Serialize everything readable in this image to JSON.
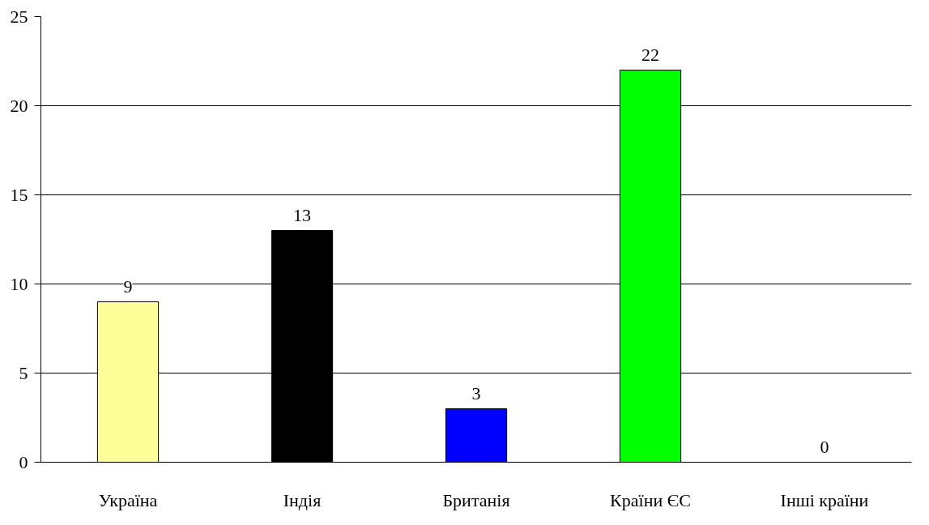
{
  "chart_data": {
    "type": "bar",
    "categories": [
      "Україна",
      "Індія",
      "Британія",
      "Країни ЄС",
      "Інші країни"
    ],
    "values": [
      9,
      13,
      3,
      22,
      0
    ],
    "colors": [
      "#ffff99",
      "#000000",
      "#0000ff",
      "#00ff00",
      "#ffffff"
    ],
    "ylim": [
      0,
      25
    ],
    "yticks": [
      0,
      5,
      10,
      15,
      20,
      25
    ],
    "grid": "y",
    "data_labels": true
  }
}
